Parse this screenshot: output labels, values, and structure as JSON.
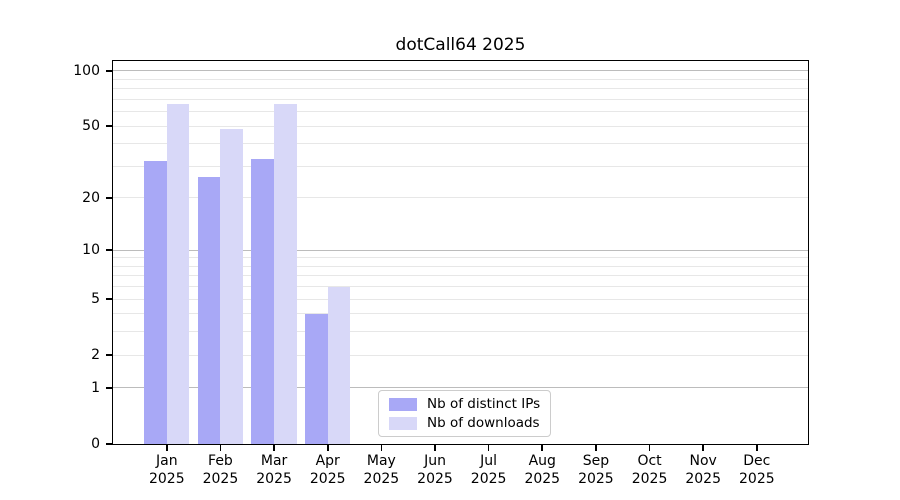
{
  "chart_data": {
    "type": "bar",
    "title": "dotCall64 2025",
    "categories": [
      "Jan",
      "Feb",
      "Mar",
      "Apr",
      "May",
      "Jun",
      "Jul",
      "Aug",
      "Sep",
      "Oct",
      "Nov",
      "Dec"
    ],
    "year_label": "2025",
    "series": [
      {
        "name": "Nb of distinct IPs",
        "color": "#a8a8f6",
        "values": [
          32,
          26,
          33,
          4,
          0,
          0,
          0,
          0,
          0,
          0,
          0,
          0
        ]
      },
      {
        "name": "Nb of downloads",
        "color": "#d8d8f8",
        "values": [
          66,
          48,
          66,
          6,
          0,
          0,
          0,
          0,
          0,
          0,
          0,
          0
        ]
      }
    ],
    "yscale": "log1p",
    "ylim": [
      0,
      113
    ],
    "yticks": [
      100,
      50,
      20,
      10,
      5,
      2,
      1,
      0
    ],
    "grid": {
      "major": [
        1,
        10,
        100
      ],
      "minor": [
        2,
        3,
        4,
        5,
        6,
        7,
        8,
        9,
        20,
        30,
        40,
        50,
        60,
        70,
        80,
        90
      ],
      "major_color": "#bcbcbc",
      "minor_color": "#e7e7e7"
    },
    "legend_position": "lower center",
    "axis_color": "#000000",
    "background_color": "#ffffff"
  }
}
